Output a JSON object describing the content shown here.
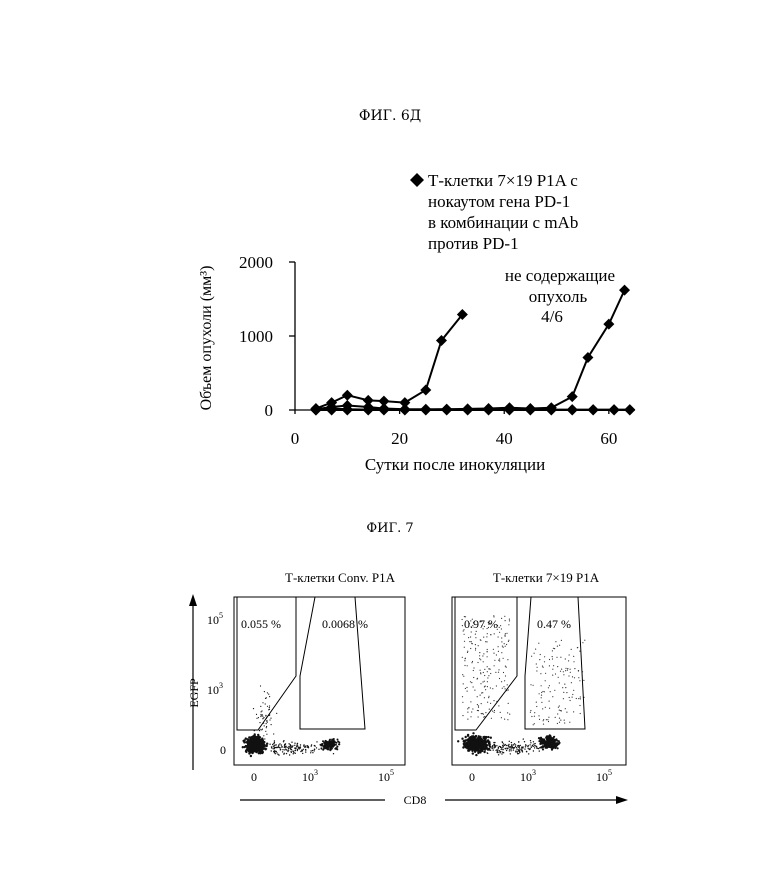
{
  "fig6d": {
    "title": "ФИГ. 6Д",
    "legend_label_lines": [
      "Т-клетки 7×19 P1A с",
      "нокаутом гена PD-1",
      "в комбинации с mAb",
      "против PD-1"
    ],
    "annotation_lines": [
      "не содержащие",
      "опухоль"
    ],
    "annotation_fraction": "4/6"
  },
  "fig7": {
    "title": "ФИГ. 7",
    "x_axis_label": "CD8",
    "y_axis_label": "EGFP",
    "panels": [
      {
        "title": "Т-клетки Conv. P1A",
        "left_gate_pct": "0.055 %",
        "right_gate_pct": "0.0068 %"
      },
      {
        "title": "Т-клетки 7×19 P1A",
        "left_gate_pct": "0.97 %",
        "right_gate_pct": "0.47 %"
      }
    ],
    "tick_labels": {
      "y_top": "10",
      "y_top_exp": "5",
      "y_mid": "10",
      "y_mid_exp": "3",
      "y_zero": "0",
      "x_zero": "0",
      "x_mid": "10",
      "x_mid_exp": "3",
      "x_end": "10",
      "x_end_exp": "5"
    }
  },
  "chart_data": {
    "type": "line",
    "xlabel": "Сутки после инокуляции",
    "ylabel": "Объем опухоли (мм³)",
    "xlim": [
      0,
      65
    ],
    "ylim": [
      0,
      2000
    ],
    "x_ticks": [
      0,
      20,
      40,
      60
    ],
    "y_ticks": [
      0,
      1000,
      2000
    ],
    "grid": false,
    "legend_position": "top-right",
    "marker": "diamond",
    "series": [
      {
        "name": "Т-клетки 7×19 P1A с нокаутом гена PD-1 в комбинации с mAb против PD-1",
        "x": [
          4,
          7,
          10,
          14,
          17,
          21,
          25,
          28,
          32
        ],
        "values": [
          20,
          100,
          200,
          130,
          120,
          100,
          270,
          940,
          1290
        ]
      },
      {
        "x": [
          4,
          7,
          10,
          14,
          17,
          21,
          25,
          29,
          33,
          37,
          41,
          45,
          49,
          53,
          56,
          60,
          63
        ],
        "values": [
          10,
          40,
          60,
          40,
          20,
          10,
          10,
          10,
          15,
          20,
          30,
          20,
          30,
          180,
          710,
          1160,
          1620
        ]
      },
      {
        "x": [
          4,
          7,
          10,
          14,
          17,
          21,
          25,
          29,
          33,
          37,
          41,
          45,
          49,
          53,
          57,
          61,
          64
        ],
        "values": [
          0,
          20,
          10,
          5,
          10,
          5,
          5,
          10,
          5,
          5,
          10,
          5,
          5,
          5,
          5,
          5,
          5
        ]
      },
      {
        "x": [
          4,
          7,
          10,
          14,
          17,
          21,
          25,
          29,
          33,
          37,
          41,
          45,
          49,
          53,
          57,
          61,
          64
        ],
        "values": [
          0,
          0,
          0,
          0,
          0,
          0,
          0,
          0,
          0,
          0,
          0,
          0,
          0,
          0,
          0,
          0,
          0
        ]
      }
    ]
  }
}
